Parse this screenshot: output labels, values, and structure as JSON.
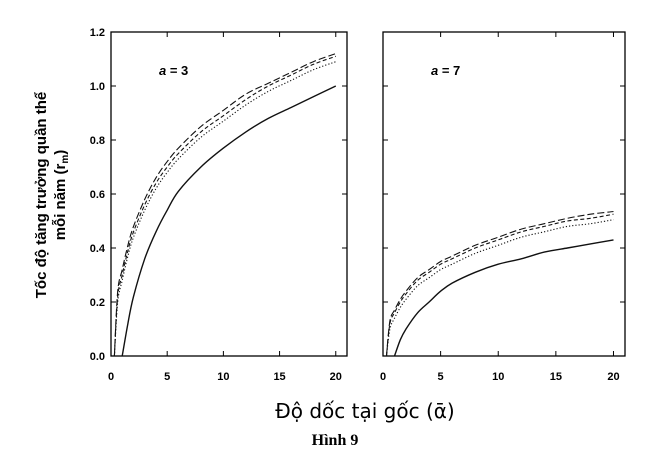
{
  "chart_data": {
    "type": "line",
    "ylabel_line1": "Tốc độ tăng trưởng quần thể",
    "ylabel_line2": "mỗi năm (r",
    "ylabel_sub": "m",
    "ylabel_close": ")",
    "xlabel": "Độ dốc tại gốc (ᾱ)",
    "caption": "Hình 9",
    "ylim": [
      0,
      1.2
    ],
    "yticks": [
      "0.0",
      "0.2",
      "0.4",
      "0.6",
      "0.8",
      "1.0",
      "1.2"
    ],
    "panels": [
      {
        "label_var": "a",
        "label_rest": " = 3",
        "xlim": [
          0,
          21
        ],
        "xticks": [
          "0",
          "5",
          "10",
          "15",
          "20"
        ],
        "series": [
          {
            "style": "solid",
            "x": [
              1.0,
              1.5,
              2,
              3,
              4,
              5,
              6,
              8,
              10,
              12,
              14,
              16,
              18,
              20
            ],
            "y": [
              0.0,
              0.12,
              0.22,
              0.36,
              0.46,
              0.54,
              0.61,
              0.7,
              0.77,
              0.83,
              0.88,
              0.92,
              0.96,
              1.0
            ]
          },
          {
            "style": "dotted",
            "x": [
              0.3,
              0.6,
              1,
              1.5,
              2,
              3,
              4,
              5,
              6,
              8,
              10,
              12,
              14,
              16,
              18,
              20
            ],
            "y": [
              0.0,
              0.2,
              0.28,
              0.37,
              0.44,
              0.54,
              0.62,
              0.68,
              0.73,
              0.81,
              0.87,
              0.93,
              0.98,
              1.02,
              1.06,
              1.09
            ]
          },
          {
            "style": "dashed",
            "x": [
              0.3,
              0.6,
              1,
              1.5,
              2,
              3,
              4,
              5,
              6,
              8,
              10,
              12,
              14,
              16,
              18,
              20
            ],
            "y": [
              0.0,
              0.22,
              0.3,
              0.39,
              0.46,
              0.56,
              0.64,
              0.7,
              0.75,
              0.83,
              0.89,
              0.95,
              1.0,
              1.04,
              1.08,
              1.11
            ]
          },
          {
            "style": "longdash",
            "x": [
              0.3,
              0.6,
              1,
              1.5,
              2,
              3,
              4,
              5,
              6,
              8,
              10,
              12,
              14,
              16,
              18,
              20
            ],
            "y": [
              0.0,
              0.24,
              0.32,
              0.41,
              0.48,
              0.58,
              0.66,
              0.72,
              0.77,
              0.85,
              0.91,
              0.97,
              1.01,
              1.05,
              1.09,
              1.12
            ]
          }
        ]
      },
      {
        "label_var": "a",
        "label_rest": " = 7",
        "xlim": [
          0,
          21
        ],
        "xticks": [
          "0",
          "5",
          "10",
          "15",
          "20"
        ],
        "series": [
          {
            "style": "solid",
            "x": [
              1.0,
              1.5,
              2,
              3,
              4,
              5,
              6,
              8,
              10,
              12,
              14,
              16,
              18,
              20
            ],
            "y": [
              0.0,
              0.06,
              0.1,
              0.16,
              0.2,
              0.24,
              0.27,
              0.31,
              0.34,
              0.36,
              0.385,
              0.4,
              0.415,
              0.43
            ]
          },
          {
            "style": "dotted",
            "x": [
              0.3,
              0.6,
              1,
              1.5,
              2,
              3,
              4,
              5,
              6,
              8,
              10,
              12,
              14,
              16,
              18,
              20
            ],
            "y": [
              0.0,
              0.1,
              0.14,
              0.18,
              0.21,
              0.26,
              0.29,
              0.32,
              0.34,
              0.38,
              0.41,
              0.44,
              0.46,
              0.48,
              0.49,
              0.505
            ]
          },
          {
            "style": "dashed",
            "x": [
              0.3,
              0.6,
              1,
              1.5,
              2,
              3,
              4,
              5,
              6,
              8,
              10,
              12,
              14,
              16,
              18,
              20
            ],
            "y": [
              0.0,
              0.12,
              0.16,
              0.2,
              0.23,
              0.28,
              0.31,
              0.34,
              0.36,
              0.4,
              0.43,
              0.46,
              0.48,
              0.5,
              0.51,
              0.525
            ]
          },
          {
            "style": "longdash",
            "x": [
              0.3,
              0.6,
              1,
              1.5,
              2,
              3,
              4,
              5,
              6,
              8,
              10,
              12,
              14,
              16,
              18,
              20
            ],
            "y": [
              0.0,
              0.13,
              0.17,
              0.21,
              0.24,
              0.29,
              0.32,
              0.35,
              0.37,
              0.41,
              0.44,
              0.47,
              0.49,
              0.51,
              0.525,
              0.535
            ]
          }
        ]
      }
    ]
  }
}
